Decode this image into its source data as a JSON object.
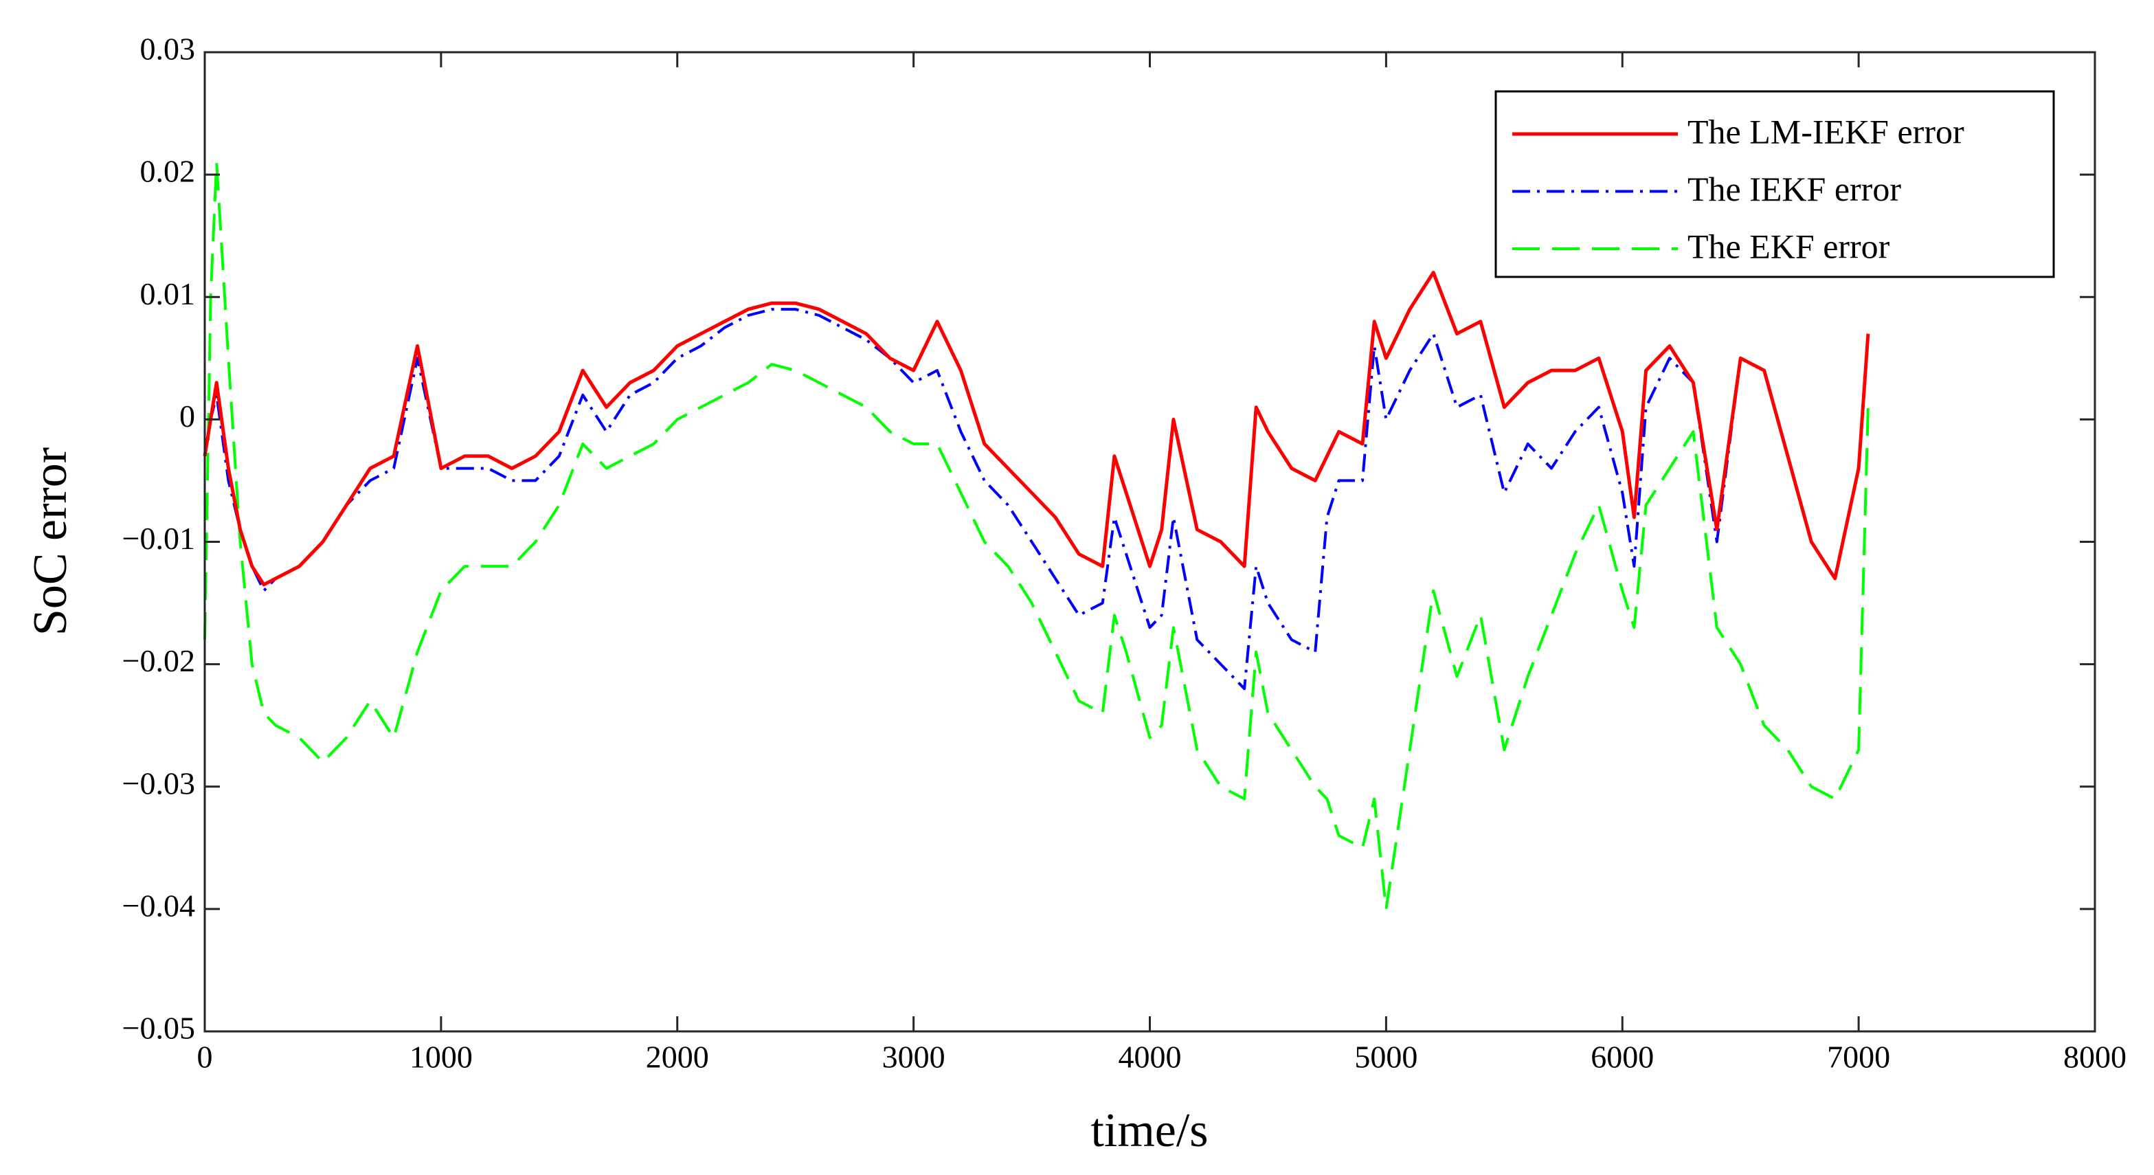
{
  "chart_data": {
    "type": "line",
    "xlabel": "time/s",
    "ylabel": "SoC error",
    "xlim": [
      0,
      8000
    ],
    "ylim": [
      -0.05,
      0.03
    ],
    "xticks": [
      0,
      1000,
      2000,
      3000,
      4000,
      5000,
      6000,
      7000,
      8000
    ],
    "yticks": [
      {
        "value": -0.05,
        "label": "−0.05"
      },
      {
        "value": -0.04,
        "label": "−0.04"
      },
      {
        "value": -0.03,
        "label": "−0.03"
      },
      {
        "value": -0.02,
        "label": "−0.02"
      },
      {
        "value": -0.01,
        "label": "−0.01"
      },
      0,
      0.01,
      0.02,
      0.03
    ],
    "grid": false,
    "legend": "upper right",
    "x": [
      0,
      25,
      50,
      100,
      150,
      200,
      250,
      300,
      400,
      500,
      600,
      700,
      800,
      900,
      1000,
      1100,
      1200,
      1300,
      1400,
      1500,
      1600,
      1700,
      1800,
      1900,
      2000,
      2100,
      2200,
      2300,
      2400,
      2500,
      2600,
      2700,
      2800,
      2900,
      3000,
      3100,
      3200,
      3300,
      3400,
      3500,
      3600,
      3700,
      3800,
      3850,
      3900,
      4000,
      4050,
      4100,
      4200,
      4300,
      4400,
      4450,
      4500,
      4600,
      4700,
      4750,
      4800,
      4900,
      4950,
      5000,
      5100,
      5200,
      5300,
      5400,
      5500,
      5600,
      5700,
      5800,
      5900,
      6000,
      6050,
      6100,
      6200,
      6300,
      6400,
      6500,
      6600,
      6700,
      6800,
      6900,
      7000,
      7040
    ],
    "series": [
      {
        "name": "The LM-IEKF error",
        "color": "#ff0000",
        "dash": "solid",
        "values": [
          -0.003,
          0.0,
          0.003,
          -0.004,
          -0.009,
          -0.012,
          -0.0135,
          -0.013,
          -0.012,
          -0.01,
          -0.007,
          -0.004,
          -0.003,
          0.006,
          -0.004,
          -0.003,
          -0.003,
          -0.004,
          -0.003,
          -0.001,
          0.004,
          0.001,
          0.003,
          0.004,
          0.006,
          0.007,
          0.008,
          0.009,
          0.0095,
          0.0095,
          0.009,
          0.008,
          0.007,
          0.005,
          0.004,
          0.008,
          0.004,
          -0.002,
          -0.004,
          -0.006,
          -0.008,
          -0.011,
          -0.012,
          -0.003,
          -0.006,
          -0.012,
          -0.009,
          0.0,
          -0.009,
          -0.01,
          -0.012,
          0.001,
          -0.001,
          -0.004,
          -0.005,
          -0.003,
          -0.001,
          -0.002,
          0.008,
          0.005,
          0.009,
          0.012,
          0.007,
          0.008,
          0.001,
          0.003,
          0.004,
          0.004,
          0.005,
          -0.001,
          -0.008,
          0.004,
          0.006,
          0.003,
          -0.009,
          0.005,
          0.004,
          -0.003,
          -0.01,
          -0.013,
          -0.004,
          0.007
        ]
      },
      {
        "name": "The IEKF error",
        "color": "#0000ff",
        "dash": "dashdot",
        "values": [
          -0.003,
          0.0,
          0.002,
          -0.005,
          -0.009,
          -0.012,
          -0.014,
          -0.013,
          -0.012,
          -0.01,
          -0.007,
          -0.005,
          -0.004,
          0.005,
          -0.004,
          -0.004,
          -0.004,
          -0.005,
          -0.005,
          -0.003,
          0.002,
          -0.001,
          0.002,
          0.003,
          0.005,
          0.006,
          0.0075,
          0.0085,
          0.009,
          0.009,
          0.0085,
          0.0075,
          0.0065,
          0.005,
          0.003,
          0.004,
          -0.001,
          -0.005,
          -0.007,
          -0.01,
          -0.013,
          -0.016,
          -0.015,
          -0.008,
          -0.011,
          -0.017,
          -0.016,
          -0.008,
          -0.018,
          -0.02,
          -0.022,
          -0.012,
          -0.015,
          -0.018,
          -0.019,
          -0.008,
          -0.005,
          -0.005,
          0.006,
          0.0,
          0.004,
          0.007,
          0.001,
          0.002,
          -0.006,
          -0.002,
          -0.004,
          -0.001,
          0.001,
          -0.006,
          -0.012,
          0.001,
          0.005,
          0.003,
          -0.01,
          0.005,
          0.004,
          -0.003,
          -0.01,
          -0.013,
          -0.004,
          0.007
        ]
      },
      {
        "name": "The EKF error",
        "color": "#00ff00",
        "dash": "dashed",
        "values": [
          -0.018,
          0.01,
          0.021,
          0.005,
          -0.01,
          -0.02,
          -0.024,
          -0.025,
          -0.026,
          -0.028,
          -0.026,
          -0.023,
          -0.026,
          -0.019,
          -0.014,
          -0.012,
          -0.012,
          -0.012,
          -0.01,
          -0.007,
          -0.002,
          -0.004,
          -0.003,
          -0.002,
          0.0,
          0.001,
          0.002,
          0.003,
          0.0045,
          0.004,
          0.003,
          0.002,
          0.001,
          -0.001,
          -0.002,
          -0.002,
          -0.006,
          -0.01,
          -0.012,
          -0.015,
          -0.019,
          -0.023,
          -0.024,
          -0.016,
          -0.019,
          -0.026,
          -0.025,
          -0.017,
          -0.027,
          -0.03,
          -0.031,
          -0.019,
          -0.024,
          -0.027,
          -0.03,
          -0.031,
          -0.034,
          -0.035,
          -0.031,
          -0.04,
          -0.027,
          -0.014,
          -0.021,
          -0.016,
          -0.027,
          -0.021,
          -0.016,
          -0.011,
          -0.007,
          -0.014,
          -0.017,
          -0.007,
          -0.004,
          -0.001,
          -0.017,
          -0.02,
          -0.025,
          -0.027,
          -0.03,
          -0.031,
          -0.027,
          0.001
        ]
      }
    ]
  }
}
